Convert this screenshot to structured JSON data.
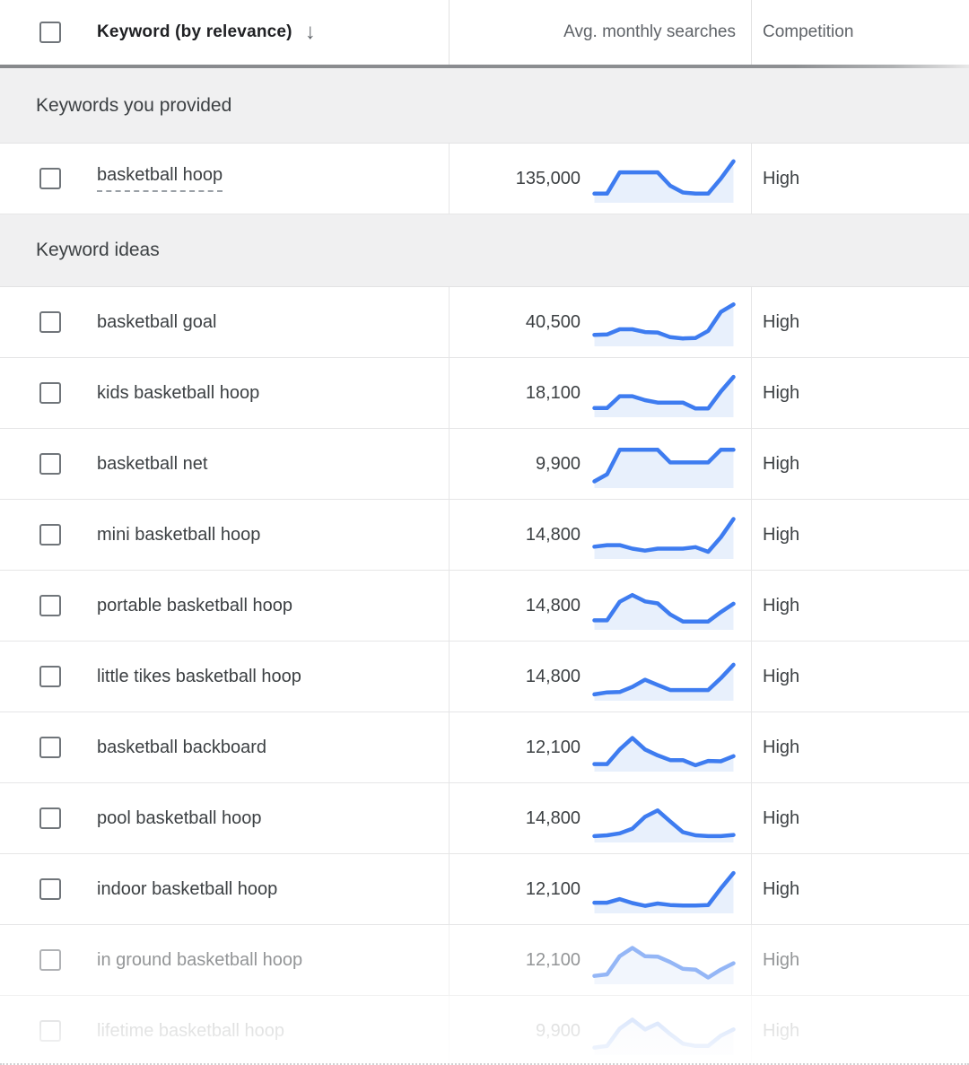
{
  "header": {
    "keyword_label": "Keyword (by relevance)",
    "sort_icon": "↓",
    "searches_label": "Avg. monthly searches",
    "competition_label": "Competition"
  },
  "colors": {
    "spark_line": "#3e7cf0",
    "spark_fill": "#e8f0fc",
    "accent_text": "#3c4043",
    "header_gray": "#5f6368"
  },
  "table": {
    "groups": [
      {
        "label": "Keywords you provided",
        "rows": [
          {
            "keyword": "basketball hoop",
            "dashed_underline": true,
            "searches": "135,000",
            "competition": "High",
            "fade": 0
          }
        ]
      },
      {
        "label": "Keyword ideas",
        "rows": [
          {
            "keyword": "basketball goal",
            "dashed_underline": false,
            "searches": "40,500",
            "competition": "High",
            "fade": 0
          },
          {
            "keyword": "kids basketball hoop",
            "dashed_underline": false,
            "searches": "18,100",
            "competition": "High",
            "fade": 0
          },
          {
            "keyword": "basketball net",
            "dashed_underline": false,
            "searches": "9,900",
            "competition": "High",
            "fade": 0
          },
          {
            "keyword": "mini basketball hoop",
            "dashed_underline": false,
            "searches": "14,800",
            "competition": "High",
            "fade": 0
          },
          {
            "keyword": "portable basketball hoop",
            "dashed_underline": false,
            "searches": "14,800",
            "competition": "High",
            "fade": 0
          },
          {
            "keyword": "little tikes basketball hoop",
            "dashed_underline": false,
            "searches": "14,800",
            "competition": "High",
            "fade": 0
          },
          {
            "keyword": "basketball backboard",
            "dashed_underline": false,
            "searches": "12,100",
            "competition": "High",
            "fade": 0
          },
          {
            "keyword": "pool basketball hoop",
            "dashed_underline": false,
            "searches": "14,800",
            "competition": "High",
            "fade": 0
          },
          {
            "keyword": "indoor basketball hoop",
            "dashed_underline": false,
            "searches": "12,100",
            "competition": "High",
            "fade": 0
          },
          {
            "keyword": "in ground basketball hoop",
            "dashed_underline": false,
            "searches": "12,100",
            "competition": "High",
            "fade": 1
          },
          {
            "keyword": "lifetime basketball hoop",
            "dashed_underline": false,
            "searches": "9,900",
            "competition": "High",
            "fade": 2
          }
        ]
      }
    ]
  },
  "chart_data": {
    "type": "line",
    "note": "12-month search-trend sparklines; values are relative 0-100 estimates read from each mini chart",
    "series": [
      {
        "name": "basketball hoop",
        "values": [
          14,
          14,
          68,
          68,
          68,
          68,
          34,
          17,
          14,
          14,
          52,
          96
        ]
      },
      {
        "name": "basketball goal",
        "values": [
          20,
          21,
          34,
          34,
          27,
          26,
          14,
          11,
          12,
          30,
          78,
          97
        ]
      },
      {
        "name": "kids basketball hoop",
        "values": [
          14,
          14,
          44,
          44,
          34,
          28,
          28,
          28,
          13,
          13,
          56,
          93
        ]
      },
      {
        "name": "basketball net",
        "values": [
          8,
          26,
          88,
          88,
          88,
          88,
          56,
          56,
          56,
          56,
          88,
          88
        ]
      },
      {
        "name": "mini basketball hoop",
        "values": [
          22,
          26,
          26,
          17,
          12,
          17,
          17,
          17,
          21,
          9,
          46,
          92
        ]
      },
      {
        "name": "portable basketball hoop",
        "values": [
          15,
          15,
          62,
          79,
          63,
          58,
          30,
          12,
          12,
          12,
          36,
          57
        ]
      },
      {
        "name": "little tikes basketball hoop",
        "values": [
          7,
          12,
          13,
          26,
          44,
          31,
          18,
          18,
          18,
          18,
          48,
          82
        ]
      },
      {
        "name": "basketball backboard",
        "values": [
          10,
          10,
          47,
          76,
          47,
          32,
          20,
          20,
          7,
          18,
          17,
          30
        ]
      },
      {
        "name": "pool basketball hoop",
        "values": [
          7,
          9,
          14,
          26,
          56,
          72,
          44,
          17,
          9,
          7,
          7,
          10
        ]
      },
      {
        "name": "indoor basketball hoop",
        "values": [
          18,
          18,
          27,
          17,
          10,
          16,
          12,
          11,
          11,
          12,
          54,
          93
        ]
      },
      {
        "name": "in ground basketball hoop",
        "values": [
          12,
          16,
          62,
          83,
          62,
          61,
          47,
          30,
          28,
          8,
          28,
          44
        ]
      },
      {
        "name": "lifetime basketball hoop",
        "values": [
          10,
          14,
          58,
          81,
          56,
          71,
          44,
          20,
          14,
          14,
          40,
          56
        ]
      }
    ]
  }
}
